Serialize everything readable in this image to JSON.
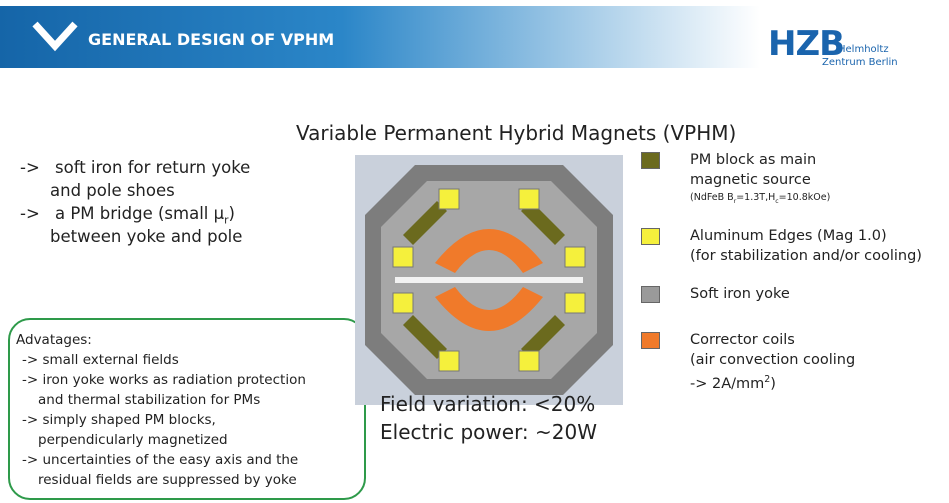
{
  "header": {
    "title": "GENERAL DESIGN OF VPHM",
    "logo": {
      "mark": "HZB",
      "line1": "Helmholtz",
      "line2": "Zentrum Berlin"
    }
  },
  "heading": "Variable Permanent Hybrid Magnets (VPHM)",
  "bullets": [
    {
      "arrow": "->",
      "lines": [
        {
          "before": "soft iron for return yoke"
        },
        {
          "before": "and pole shoes"
        }
      ]
    },
    {
      "arrow": "->",
      "lines": [
        {
          "before": "a PM bridge (small μ",
          "sub": "r",
          "after": ")"
        },
        {
          "before": "between yoke and pole"
        }
      ]
    }
  ],
  "advantages": {
    "title": "Advatages:",
    "lines": [
      "-> small external fields",
      "-> iron yoke works as radiation protection",
      "and thermal stabilization for PMs",
      "-> simply shaped PM blocks,",
      "perpendicularly magnetized",
      "-> uncertainties of the easy axis and the",
      "residual fields are suppressed by yoke"
    ]
  },
  "performance": [
    "Field variation: <20%",
    "Electric power: ~20W"
  ],
  "legend": [
    {
      "color": "#6b6a1e",
      "lines": [
        {
          "before": "PM block as main"
        },
        {
          "before": "magnetic source"
        }
      ],
      "note": {
        "parts": [
          "(NdFeB B",
          "r",
          "=1.3T,H",
          "c",
          "=10.8kOe)"
        ]
      }
    },
    {
      "color": "#f5f03c",
      "lines": [
        {
          "before": "Aluminum Edges (Mag 1.0)"
        },
        {
          "before": "(for stabilization and/or cooling)"
        }
      ]
    },
    {
      "color": "#9a9a9a",
      "lines": [
        {
          "before": "Soft iron yoke"
        }
      ]
    },
    {
      "color": "#f07a2a",
      "lines": [
        {
          "before": "Corrector coils"
        },
        {
          "before": "(air convection cooling"
        },
        {
          "before": " -> 2A/mm",
          "sup": "2",
          "after": ")"
        }
      ]
    }
  ]
}
